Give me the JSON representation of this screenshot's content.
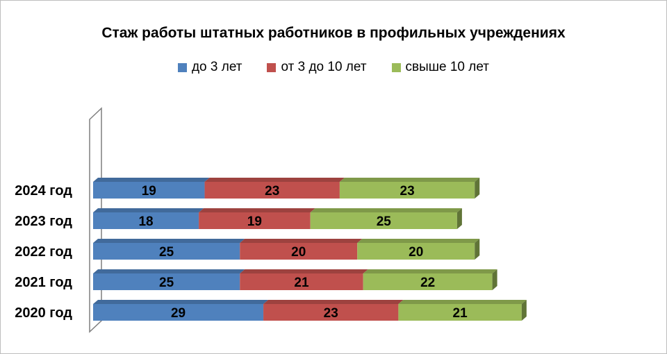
{
  "chart_data": {
    "type": "bar",
    "orientation": "horizontal",
    "stacked": true,
    "style": "3d",
    "title": "Стаж работы  штатных работников  в профильных учреждениях",
    "categories": [
      "2024 год",
      "2023 год",
      "2022 год",
      "2021 год",
      "2020 год"
    ],
    "series": [
      {
        "name": "до  3 лет",
        "color": "#4F81BD",
        "values": [
          19,
          18,
          25,
          25,
          29
        ]
      },
      {
        "name": "от 3 до 10 лет",
        "color": "#C0504D",
        "values": [
          23,
          19,
          20,
          21,
          23
        ]
      },
      {
        "name": "свыше 10 лет",
        "color": "#9BBB59",
        "values": [
          23,
          25,
          20,
          22,
          21
        ]
      }
    ],
    "legend_position": "top",
    "grid": false,
    "xlim": [
      0,
      75
    ]
  }
}
